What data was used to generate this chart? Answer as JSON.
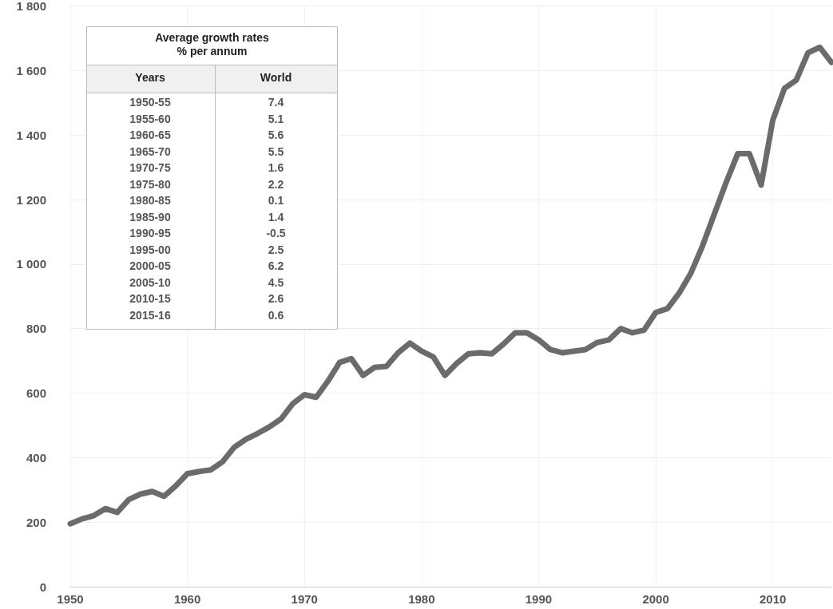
{
  "chart_data": {
    "type": "line",
    "x": [
      1950,
      1951,
      1952,
      1953,
      1954,
      1955,
      1956,
      1957,
      1958,
      1959,
      1960,
      1961,
      1962,
      1963,
      1964,
      1965,
      1966,
      1967,
      1968,
      1969,
      1970,
      1971,
      1972,
      1973,
      1974,
      1975,
      1976,
      1977,
      1978,
      1979,
      1980,
      1981,
      1982,
      1983,
      1984,
      1985,
      1986,
      1987,
      1988,
      1989,
      1990,
      1991,
      1992,
      1993,
      1994,
      1995,
      1996,
      1997,
      1998,
      1999,
      2000,
      2001,
      2002,
      2003,
      2004,
      2005,
      2006,
      2007,
      2008,
      2009,
      2010,
      2011,
      2012,
      2013,
      2014,
      2015
    ],
    "series": [
      {
        "color": "#6b6b6b",
        "values": [
          195,
          210,
          220,
          242,
          230,
          270,
          287,
          295,
          280,
          312,
          350,
          357,
          362,
          387,
          432,
          457,
          475,
          495,
          520,
          567,
          595,
          587,
          637,
          695,
          707,
          655,
          680,
          683,
          725,
          755,
          730,
          712,
          655,
          692,
          722,
          725,
          722,
          752,
          787,
          787,
          765,
          735,
          725,
          730,
          735,
          757,
          765,
          800,
          787,
          795,
          850,
          862,
          910,
          972,
          1057,
          1155,
          1252,
          1342,
          1342,
          1245,
          1447,
          1545,
          1570,
          1655,
          1672,
          1625
        ]
      }
    ],
    "xlim": [
      1950,
      2015
    ],
    "xticks": [
      1950,
      1960,
      1970,
      1980,
      1990,
      2000,
      2010
    ],
    "ylim": [
      0,
      1800
    ],
    "yticks": [
      0,
      200,
      400,
      600,
      800,
      {
        "value": 1000,
        "label": "1 000"
      },
      {
        "value": 1200,
        "label": "1 200"
      },
      {
        "value": 1400,
        "label": "1 400"
      },
      {
        "value": 1600,
        "label": "1 600"
      },
      {
        "value": 1800,
        "label": "1 800"
      }
    ],
    "grid": true,
    "marker": "none",
    "line_style": "solid",
    "annotations": [
      "Average growth rates",
      "% per annum",
      "Years",
      "World",
      "1950-55",
      "7.4",
      "1955-60",
      "5.1",
      "1960-65",
      "5.6",
      "1965-70",
      "5.5",
      "1970-75",
      "1.6",
      "1975-80",
      "2.2",
      "1980-85",
      "0.1",
      "1985-90",
      "1.4",
      "1990-95",
      "-0.5",
      "1995-00",
      "2.5",
      "2000-05",
      "6.2",
      "2005-10",
      "4.5",
      "2010-15",
      "2.6",
      "2015-16",
      "0.6"
    ]
  }
}
